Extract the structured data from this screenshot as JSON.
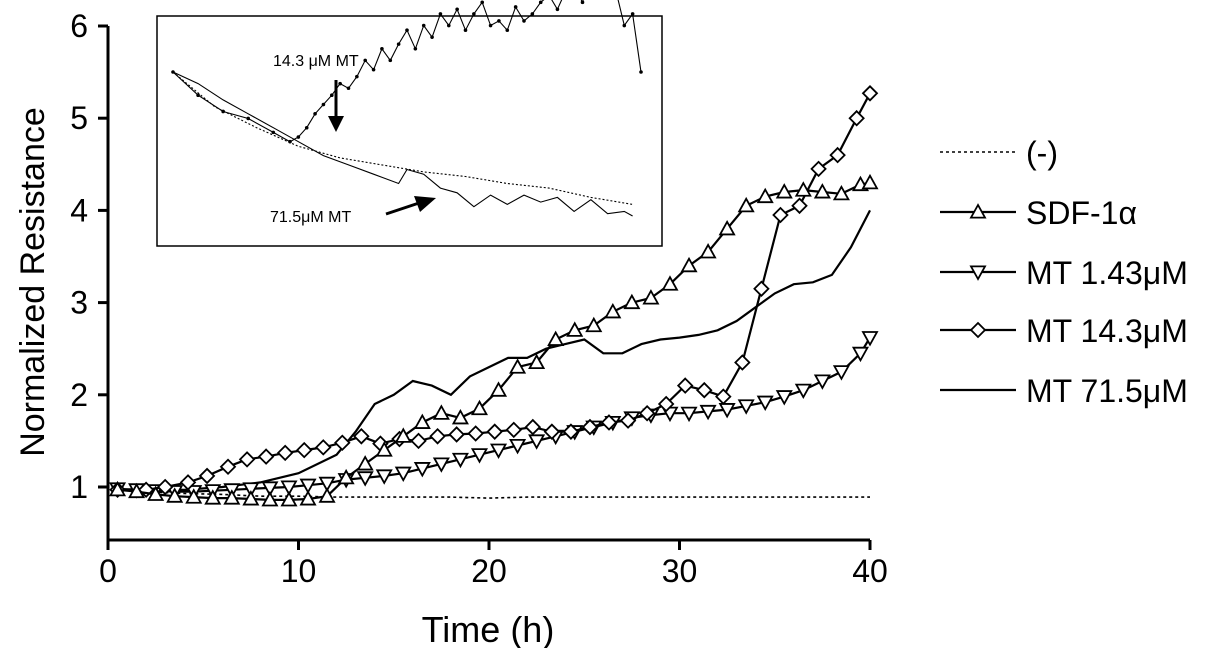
{
  "chart_data": {
    "type": "line",
    "xlabel": "Time (h)",
    "ylabel": "Normalized Resistance",
    "xlim": [
      0,
      40
    ],
    "ylim": [
      0.5,
      6
    ],
    "x_ticks": [
      "0",
      "10",
      "20",
      "30",
      "40"
    ],
    "y_ticks": [
      "1",
      "2",
      "3",
      "4",
      "5",
      "6"
    ],
    "grid": false,
    "legend_position": "right",
    "series": [
      {
        "name": "(-)",
        "style": "dotted",
        "marker": "none",
        "x": [
          0.5,
          2,
          4,
          6,
          8,
          10,
          12,
          14,
          16,
          18,
          20,
          22,
          24,
          26,
          28,
          30,
          32,
          34,
          36,
          38,
          40
        ],
        "y": [
          0.98,
          0.95,
          0.93,
          0.92,
          0.9,
          0.9,
          0.89,
          0.89,
          0.89,
          0.89,
          0.88,
          0.89,
          0.89,
          0.89,
          0.89,
          0.89,
          0.89,
          0.89,
          0.89,
          0.89,
          0.89
        ]
      },
      {
        "name": "SDF-1α",
        "style": "solid",
        "marker": "triangle-up",
        "x": [
          0.5,
          1.5,
          2.5,
          3.5,
          4.5,
          5.5,
          6.5,
          7.5,
          8.5,
          9.5,
          10.5,
          11.5,
          12.5,
          13.5,
          14.5,
          15.5,
          16.5,
          17.5,
          18.5,
          19.5,
          20.5,
          21.5,
          22.5,
          23.5,
          24.5,
          25.5,
          26.5,
          27.5,
          28.5,
          29.5,
          30.5,
          31.5,
          32.5,
          33.5,
          34.5,
          35.5,
          36.5,
          37.5,
          38.5,
          39.5,
          40
        ],
        "y": [
          0.97,
          0.95,
          0.92,
          0.9,
          0.89,
          0.88,
          0.88,
          0.87,
          0.86,
          0.86,
          0.87,
          0.9,
          1.1,
          1.25,
          1.4,
          1.55,
          1.7,
          1.8,
          1.75,
          1.85,
          2.05,
          2.3,
          2.35,
          2.6,
          2.7,
          2.75,
          2.9,
          3.0,
          3.05,
          3.2,
          3.4,
          3.55,
          3.8,
          4.05,
          4.15,
          4.2,
          4.22,
          4.2,
          4.18,
          4.28,
          4.3
        ]
      },
      {
        "name": "MT 1.43μM",
        "style": "solid",
        "marker": "triangle-down",
        "x": [
          0.5,
          1.5,
          2.5,
          3.5,
          4.5,
          5.5,
          6.5,
          7.5,
          8.5,
          9.5,
          10.5,
          11.5,
          12.5,
          13.5,
          14.5,
          15.5,
          16.5,
          17.5,
          18.5,
          19.5,
          20.5,
          21.5,
          22.5,
          23.5,
          24.5,
          25.5,
          26.5,
          27.5,
          28.5,
          29.5,
          30.5,
          31.5,
          32.5,
          33.5,
          34.5,
          35.5,
          36.5,
          37.5,
          38.5,
          39.5,
          40
        ],
        "y": [
          0.98,
          0.97,
          0.96,
          0.95,
          0.95,
          0.96,
          0.97,
          0.98,
          0.99,
          1.0,
          1.02,
          1.04,
          1.08,
          1.1,
          1.12,
          1.15,
          1.2,
          1.25,
          1.3,
          1.35,
          1.4,
          1.45,
          1.5,
          1.55,
          1.6,
          1.65,
          1.7,
          1.75,
          1.78,
          1.8,
          1.8,
          1.82,
          1.84,
          1.88,
          1.92,
          1.98,
          2.05,
          2.15,
          2.25,
          2.45,
          2.62
        ]
      },
      {
        "name": "MT 14.3μM",
        "style": "solid",
        "marker": "diamond",
        "x": [
          0.5,
          2,
          3,
          4.2,
          5.2,
          6.3,
          7.3,
          8.3,
          9.3,
          10.3,
          11.3,
          12.3,
          13.3,
          14.3,
          15.3,
          16.3,
          17.3,
          18.3,
          19.3,
          20.3,
          21.3,
          22.3,
          23.3,
          24.3,
          25.3,
          26.3,
          27.3,
          28.3,
          29.3,
          30.3,
          31.3,
          32.3,
          33.3,
          34.3,
          35.3,
          36.3,
          37.3,
          38.3,
          39.3,
          40
        ],
        "y": [
          0.97,
          0.97,
          1.0,
          1.05,
          1.12,
          1.22,
          1.3,
          1.33,
          1.37,
          1.4,
          1.43,
          1.48,
          1.55,
          1.47,
          1.52,
          1.5,
          1.55,
          1.57,
          1.58,
          1.6,
          1.62,
          1.65,
          1.6,
          1.6,
          1.65,
          1.7,
          1.72,
          1.8,
          1.9,
          2.1,
          2.05,
          1.98,
          2.35,
          3.15,
          3.95,
          4.05,
          4.45,
          4.6,
          5.0,
          5.27
        ]
      },
      {
        "name": "MT 71.5μM",
        "style": "solid",
        "marker": "none",
        "x": [
          0.5,
          2,
          4,
          6,
          8,
          10,
          12,
          13,
          14,
          15,
          16,
          17,
          18,
          19,
          20,
          21,
          22,
          23,
          24,
          25,
          26,
          27,
          28,
          29,
          30,
          31,
          32,
          33,
          34,
          35,
          36,
          37,
          38,
          39,
          40
        ],
        "y": [
          0.97,
          0.98,
          0.97,
          1.0,
          1.05,
          1.15,
          1.35,
          1.6,
          1.9,
          2.0,
          2.15,
          2.1,
          2.0,
          2.2,
          2.3,
          2.4,
          2.4,
          2.5,
          2.55,
          2.6,
          2.45,
          2.45,
          2.55,
          2.6,
          2.62,
          2.65,
          2.7,
          2.8,
          2.95,
          3.1,
          3.2,
          3.22,
          3.3,
          3.6,
          4.0
        ]
      }
    ],
    "inset": {
      "annotations": [
        "14.3 μM MT",
        "71.5μM MT"
      ],
      "series": [
        {
          "style": "solid",
          "marker": "dot",
          "x": [
            0,
            3,
            6,
            9,
            12,
            14,
            15,
            16,
            17,
            18,
            19,
            20,
            21,
            22,
            23,
            24,
            25,
            26,
            27,
            28,
            29,
            30,
            31,
            32,
            33,
            34,
            35,
            36,
            37,
            38,
            39,
            40,
            41,
            42,
            43,
            44,
            45,
            46,
            47,
            48,
            49,
            50,
            51,
            52,
            53,
            54,
            55,
            56
          ],
          "y": [
            1.0,
            0.9,
            0.83,
            0.8,
            0.74,
            0.7,
            0.72,
            0.76,
            0.82,
            0.86,
            0.9,
            0.95,
            0.93,
            0.98,
            1.05,
            1.01,
            1.1,
            1.05,
            1.12,
            1.18,
            1.1,
            1.2,
            1.15,
            1.25,
            1.2,
            1.27,
            1.18,
            1.25,
            1.3,
            1.2,
            1.22,
            1.18,
            1.28,
            1.22,
            1.25,
            1.3,
            1.33,
            1.27,
            1.35,
            1.37,
            1.3,
            1.42,
            1.4,
            1.43,
            1.35,
            1.2,
            1.25,
            1.0
          ]
        },
        {
          "style": "dotted",
          "marker": "none",
          "x": [
            0,
            5,
            10,
            15,
            20,
            25,
            30,
            35,
            40,
            45,
            50,
            55
          ],
          "y": [
            1.0,
            0.85,
            0.76,
            0.68,
            0.63,
            0.6,
            0.57,
            0.55,
            0.52,
            0.5,
            0.46,
            0.43
          ]
        },
        {
          "style": "solid",
          "marker": "none",
          "x": [
            0,
            3,
            6,
            9,
            12,
            15,
            18,
            21,
            24,
            27,
            28,
            30,
            32,
            34,
            36,
            38,
            40,
            42,
            44,
            46,
            48,
            50,
            52,
            54,
            55
          ],
          "y": [
            1.0,
            0.95,
            0.88,
            0.82,
            0.76,
            0.7,
            0.64,
            0.6,
            0.56,
            0.52,
            0.58,
            0.56,
            0.5,
            0.48,
            0.42,
            0.47,
            0.43,
            0.47,
            0.44,
            0.46,
            0.4,
            0.45,
            0.39,
            0.4,
            0.38
          ]
        }
      ]
    }
  }
}
